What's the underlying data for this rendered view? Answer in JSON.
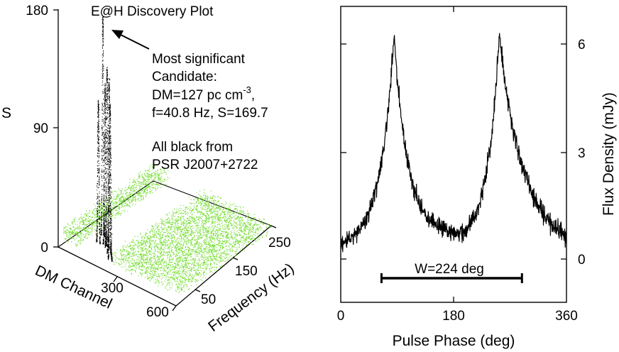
{
  "chart_data": [
    {
      "type": "scatter",
      "title": "E@H Discovery Plot",
      "ylabel": "S",
      "xlabel": "DM Channel",
      "zlabel": "Frequency (Hz)",
      "s_ticks": [
        "0",
        "90",
        "180"
      ],
      "dm_ticks": [
        "300",
        "600"
      ],
      "freq_ticks": [
        "50",
        "150",
        "250"
      ],
      "ylim": [
        0,
        180
      ],
      "dm_range": [
        0,
        600
      ],
      "freq_range": [
        0,
        250
      ],
      "annotation_lines": [
        "Most significant",
        "Candidate:",
        "DM=127 pc cm",
        "f=40.8 Hz, S=169.7"
      ],
      "annotation_sup": "-3",
      "annotation_comma": ",",
      "note_lines": [
        "All black from",
        "PSR J2007+2722"
      ],
      "candidate": {
        "dm": 127,
        "frequency": 40.8,
        "s": 169.7
      },
      "pulsar_peaks": [
        {
          "dm_channel": 100,
          "frequency": 65,
          "s": 169.7
        },
        {
          "dm_channel": 110,
          "frequency": 48,
          "s": 110
        },
        {
          "dm_channel": 140,
          "frequency": 50,
          "s": 125
        },
        {
          "dm_channel": 160,
          "frequency": 45,
          "s": 140
        },
        {
          "dm_channel": 190,
          "frequency": 35,
          "s": 135
        },
        {
          "dm_channel": 220,
          "frequency": 22,
          "s": 120
        }
      ],
      "colors": {
        "noise": "#77dd33",
        "pulsar": "#000000"
      }
    },
    {
      "type": "line",
      "xlabel": "Pulse Phase (deg)",
      "ylabel": "Flux Density (mJy)",
      "x_ticks": [
        "0",
        "180",
        "360"
      ],
      "y_ticks": [
        "0",
        "3",
        "6"
      ],
      "xlim": [
        0,
        360
      ],
      "ylim": [
        -1.2,
        6.9
      ],
      "profile_components": [
        {
          "center_deg": 85,
          "peak_mjy": 5.9
        },
        {
          "center_deg": 253,
          "peak_mjy": 6.0
        }
      ],
      "width_label": "W=224 deg",
      "width_deg": [
        65,
        289
      ],
      "color": "#000000"
    }
  ]
}
